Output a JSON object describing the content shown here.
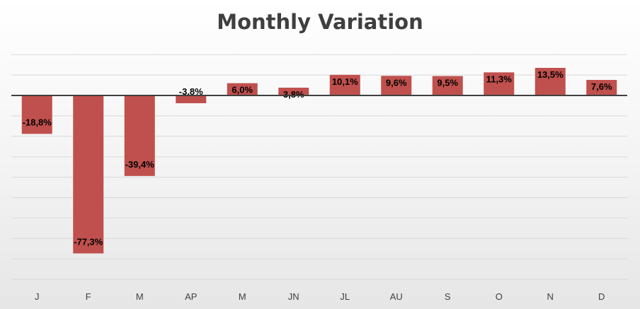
{
  "chart_data": {
    "type": "bar",
    "title": "Monthly Variation",
    "xlabel": "",
    "ylabel": "",
    "categories": [
      "J",
      "F",
      "M",
      "AP",
      "M",
      "JN",
      "JL",
      "AU",
      "S",
      "O",
      "N",
      "D"
    ],
    "values": [
      -18.8,
      -77.3,
      -39.4,
      -3.8,
      6.0,
      3.8,
      10.1,
      9.6,
      9.5,
      11.3,
      13.5,
      7.6
    ],
    "data_labels": [
      "-18,8%",
      "-77,3%",
      "-39,4%",
      "-3,8%",
      "6,0%",
      "3,8%",
      "10,1%",
      "9,6%",
      "9,5%",
      "11,3%",
      "13,5%",
      "7,6%"
    ],
    "ylim": [
      -90,
      20
    ],
    "grid": true,
    "legend": "none",
    "colors": {
      "bar": "#c0504d",
      "gridline": "#d9d9d9",
      "zero_line": "#404040"
    }
  }
}
